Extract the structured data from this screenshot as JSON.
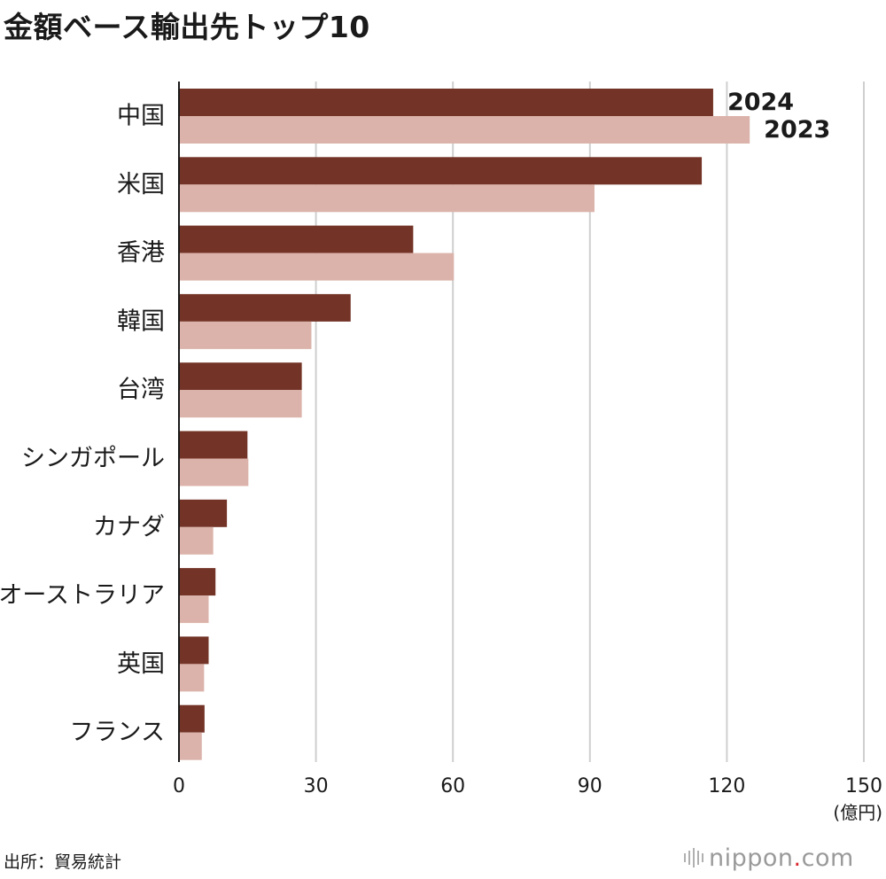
{
  "chart_data": {
    "type": "bar",
    "orientation": "horizontal",
    "title": "金額ベース輸出先トップ10",
    "categories": [
      "中国",
      "米国",
      "香港",
      "韓国",
      "台湾",
      "シンガポール",
      "カナダ",
      "オーストラリア",
      "英国",
      "フランス"
    ],
    "series": [
      {
        "name": "2024",
        "color": "#733326",
        "values": [
          117,
          114.5,
          51.3,
          37.6,
          26.9,
          15,
          10.5,
          8,
          6.5,
          5.6
        ]
      },
      {
        "name": "2023",
        "color": "#dbb3aa",
        "values": [
          125,
          91,
          60.2,
          29,
          26.9,
          15.2,
          7.5,
          6.5,
          5.5,
          5
        ]
      }
    ],
    "xlim": [
      0,
      150
    ],
    "xticks": [
      0,
      30,
      60,
      90,
      120,
      150
    ],
    "xlabel": "(億円)",
    "grid": true,
    "legend_placement": "labels at end of first category bars"
  },
  "footer": {
    "source": "出所：貿易統計",
    "logo_main": "nippon",
    "logo_dot": ".",
    "logo_suffix": "com"
  }
}
